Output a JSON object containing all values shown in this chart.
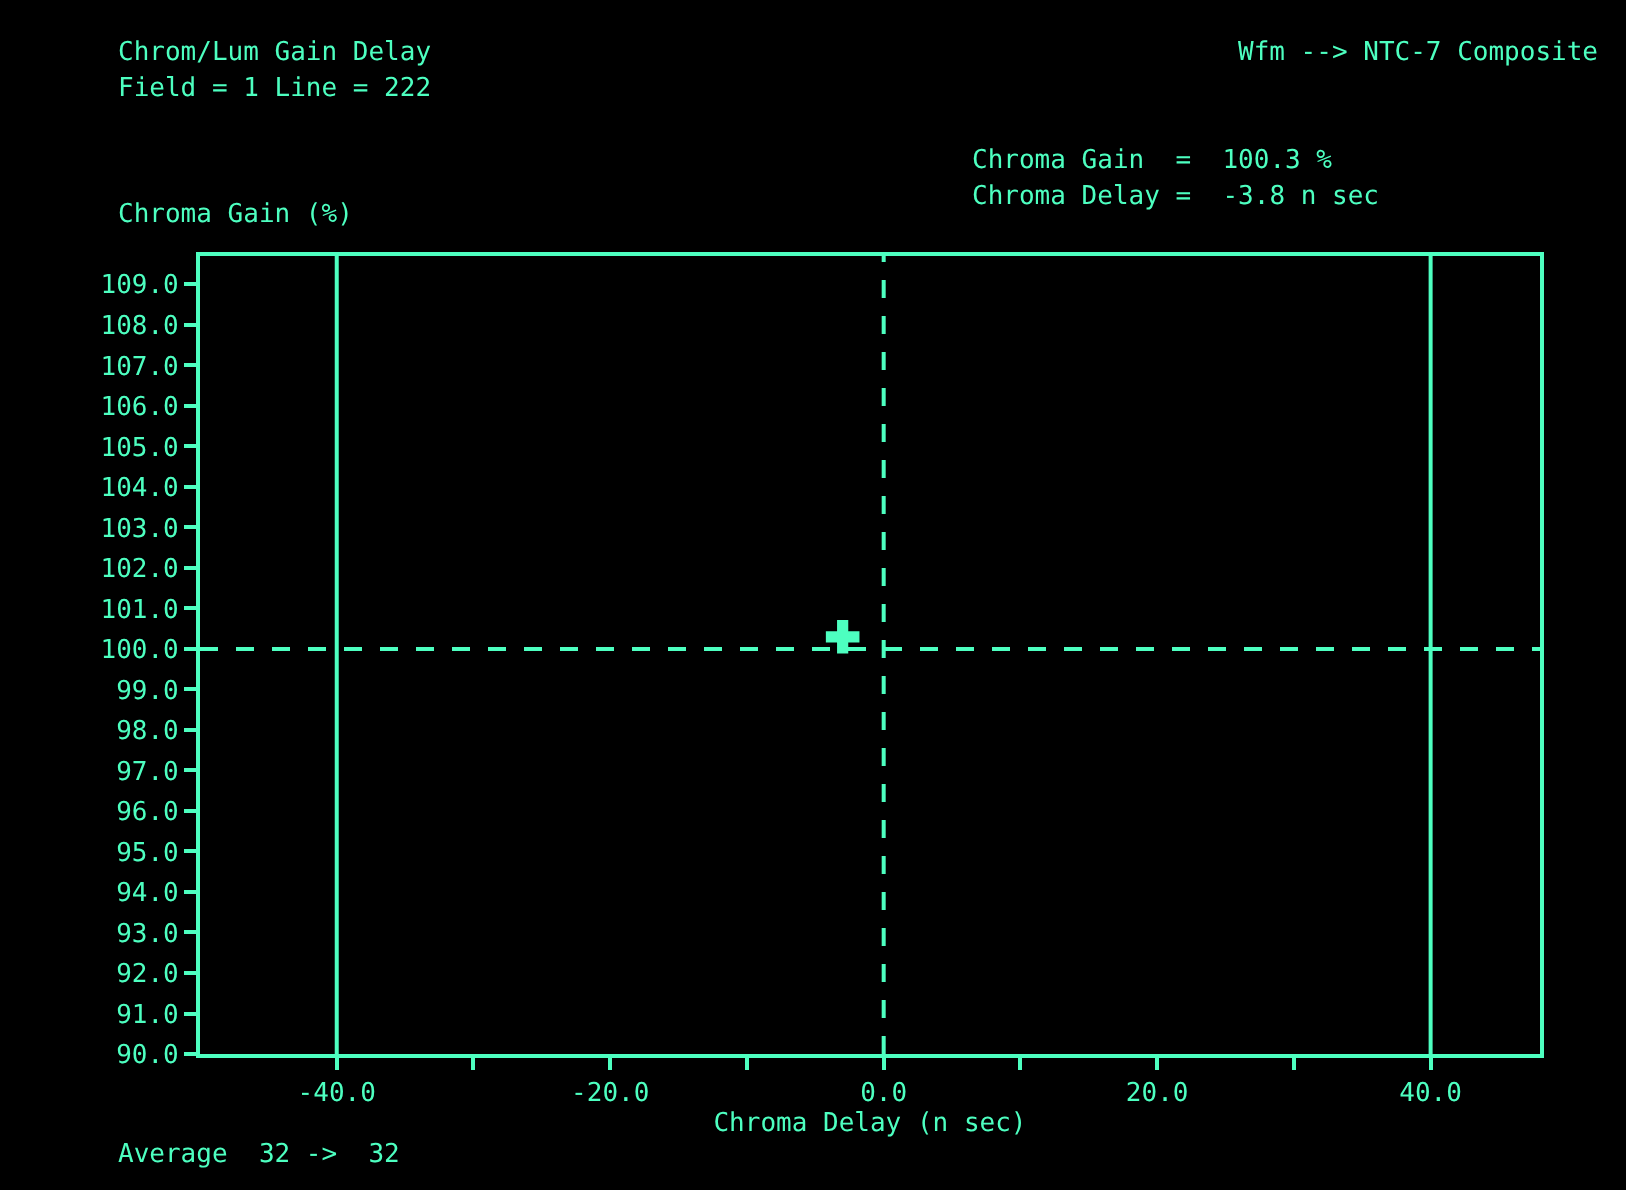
{
  "chart_data": {
    "type": "scatter",
    "title": "Chrom/Lum Gain Delay",
    "subtitle": "Field = 1 Line = 222",
    "xlabel": "Chroma Delay (n sec)",
    "ylabel": "Chroma Gain (%)",
    "annotations": [
      "Wfm --> NTC-7 Composite",
      "Chroma Gain  =  100.3 %",
      "Chroma Delay =  -3.8 n sec",
      "Average  32 ->  32"
    ],
    "x": [
      -3
    ],
    "values": [
      100.3
    ],
    "color": "#4dffc0",
    "marker": "cross",
    "grid": false,
    "xlim": [
      -50,
      48
    ],
    "ylim": [
      90,
      109.7
    ],
    "xticks": [
      {
        "value": -40,
        "label": "-40.0"
      },
      {
        "value": -30,
        "label": null
      },
      {
        "value": -20,
        "label": "-20.0"
      },
      {
        "value": -10,
        "label": null
      },
      {
        "value": 0,
        "label": "0.0"
      },
      {
        "value": 10,
        "label": null
      },
      {
        "value": 20,
        "label": "20.0"
      },
      {
        "value": 30,
        "label": null
      },
      {
        "value": 40,
        "label": "40.0"
      }
    ],
    "yticks": [
      {
        "value": 90,
        "label": "90.0"
      },
      {
        "value": 91,
        "label": "91.0"
      },
      {
        "value": 92,
        "label": "92.0"
      },
      {
        "value": 93,
        "label": "93.0"
      },
      {
        "value": 94,
        "label": "94.0"
      },
      {
        "value": 95,
        "label": "95.0"
      },
      {
        "value": 96,
        "label": "96.0"
      },
      {
        "value": 97,
        "label": "97.0"
      },
      {
        "value": 98,
        "label": "98.0"
      },
      {
        "value": 99,
        "label": "99.0"
      },
      {
        "value": 100,
        "label": "100.0"
      },
      {
        "value": 101,
        "label": "101.0"
      },
      {
        "value": 102,
        "label": "102.0"
      },
      {
        "value": 103,
        "label": "103.0"
      },
      {
        "value": 104,
        "label": "104.0"
      },
      {
        "value": 105,
        "label": "105.0"
      },
      {
        "value": 106,
        "label": "106.0"
      },
      {
        "value": 107,
        "label": "107.0"
      },
      {
        "value": 108,
        "label": "108.0"
      },
      {
        "value": 109,
        "label": "109.0"
      }
    ],
    "ref_lines": [
      {
        "axis": "x",
        "value": -40,
        "line_style": "solid"
      },
      {
        "axis": "x",
        "value": 40,
        "line_style": "solid"
      },
      {
        "axis": "x",
        "value": 0,
        "line_style": "dashed"
      },
      {
        "axis": "y",
        "value": 100,
        "line_style": "dashed"
      }
    ]
  }
}
